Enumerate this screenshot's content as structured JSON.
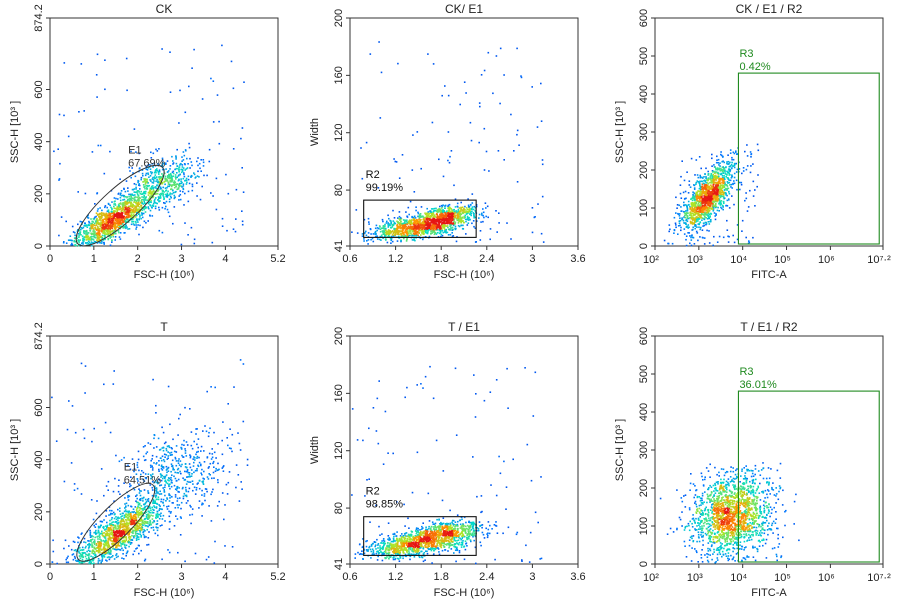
{
  "chart_data": [
    {
      "type": "scatter",
      "title": "CK",
      "xlabel": "FSC-H (10⁶)",
      "ylabel": "SSC-H [10³ ]",
      "xlim": [
        0,
        5.2
      ],
      "ylim": [
        0,
        874.2
      ],
      "xticks": [
        0,
        1,
        2,
        3,
        4,
        5.2
      ],
      "xtick_labels": [
        "0",
        "1",
        "2",
        "3",
        "4",
        "5.2"
      ],
      "yticks": [
        0,
        200,
        400,
        600,
        874.2
      ],
      "ytick_labels": [
        "0",
        "200",
        "400",
        "600",
        "874.2"
      ],
      "cloud": {
        "x": 1.45,
        "y": 105,
        "sx": 0.5,
        "sy": 60,
        "corr": 0.82,
        "n": 1300,
        "tail_x": 2.6,
        "tail_y": 250,
        "tail_sx": 0.4,
        "tail_sy": 50,
        "tail_n": 450
      },
      "gate": {
        "name": "E1",
        "percent": "67.69%",
        "shape": "ellipse",
        "cx": 1.6,
        "cy": 155,
        "rx": 1.3,
        "ry": 35,
        "angle_deg": 42
      }
    },
    {
      "type": "scatter",
      "title": "CK/ E1",
      "xlabel": "FSC-H (10⁶)",
      "ylabel": "Width",
      "xlim": [
        0.6,
        3.6
      ],
      "ylim": [
        41,
        200
      ],
      "xticks": [
        0.6,
        1.2,
        1.8,
        2.4,
        3,
        3.6
      ],
      "xtick_labels": [
        "0.6",
        "1.2",
        "1.8",
        "2.4",
        "3",
        "3.6"
      ],
      "yticks": [
        41,
        80,
        120,
        160,
        200
      ],
      "ytick_labels": [
        "41",
        "80",
        "120",
        "160",
        "200"
      ],
      "cloud": {
        "x": 1.5,
        "y": 55,
        "sx": 0.32,
        "sy": 4.5,
        "corr": 0.5,
        "n": 1100,
        "tail_x": 1.9,
        "tail_y": 64,
        "tail_sx": 0.2,
        "tail_sy": 3,
        "tail_n": 350
      },
      "gate": {
        "name": "R2",
        "percent": "99.19%",
        "shape": "rect",
        "x0": 0.78,
        "x1": 2.26,
        "y0": 47,
        "y1": 73
      }
    },
    {
      "type": "scatter",
      "title": "CK / E1 / R2",
      "xlabel": "FITC-A",
      "ylabel": "SSC-H [10³ ]",
      "x_scale": "log",
      "xlim": [
        100,
        15848932
      ],
      "ylim": [
        0,
        600
      ],
      "xticks": [
        100,
        1000,
        10000,
        100000,
        1000000,
        15848932
      ],
      "xtick_labels": [
        "10²",
        "10³",
        "10⁴",
        "10⁵",
        "10⁶",
        "10⁷·²"
      ],
      "yticks": [
        0,
        100,
        200,
        300,
        400,
        500,
        600
      ],
      "ytick_labels": [
        "0",
        "100",
        "200",
        "300",
        "400",
        "500",
        "600"
      ],
      "cloud": {
        "x": 1500,
        "y": 130,
        "sx": 0.3,
        "sy": 45,
        "corr": 0.7,
        "n": 1300,
        "ymax": 255
      },
      "gate": {
        "name": "R3",
        "percent": "0.42%",
        "shape": "rect",
        "x0": 8000,
        "x1": 13000000,
        "y0": 0,
        "y1": 455
      }
    },
    {
      "type": "scatter",
      "title": "T",
      "xlabel": "FSC-H (10⁶)",
      "ylabel": "SSC-H [10³ ]",
      "xlim": [
        0,
        5.2
      ],
      "ylim": [
        0,
        874.2
      ],
      "xticks": [
        0,
        1,
        2,
        3,
        4,
        5.2
      ],
      "xtick_labels": [
        "0",
        "1",
        "2",
        "3",
        "4",
        "5.2"
      ],
      "yticks": [
        0,
        200,
        400,
        600,
        874.2
      ],
      "ytick_labels": [
        "0",
        "200",
        "400",
        "600",
        "874.2"
      ],
      "cloud": {
        "x": 1.55,
        "y": 120,
        "sx": 0.55,
        "sy": 70,
        "corr": 0.8,
        "n": 1300,
        "tail_x": 2.8,
        "tail_y": 340,
        "tail_sx": 0.6,
        "tail_sy": 90,
        "tail_n": 500
      },
      "gate": {
        "name": "E1",
        "percent": "64.51%",
        "shape": "ellipse",
        "cx": 1.5,
        "cy": 160,
        "rx": 1.2,
        "ry": 32,
        "angle_deg": 45
      }
    },
    {
      "type": "scatter",
      "title": "T / E1",
      "xlabel": "FSC-H (10⁶)",
      "ylabel": "Width",
      "xlim": [
        0.6,
        3.6
      ],
      "ylim": [
        41,
        200
      ],
      "xticks": [
        0.6,
        1.2,
        1.8,
        2.4,
        3,
        3.6
      ],
      "xtick_labels": [
        "0.6",
        "1.2",
        "1.8",
        "2.4",
        "3",
        "3.6"
      ],
      "yticks": [
        41,
        80,
        120,
        160,
        200
      ],
      "ytick_labels": [
        "41",
        "80",
        "120",
        "160",
        "200"
      ],
      "cloud": {
        "x": 1.5,
        "y": 56,
        "sx": 0.33,
        "sy": 5,
        "corr": 0.5,
        "n": 1100,
        "tail_x": 1.9,
        "tail_y": 65,
        "tail_sx": 0.2,
        "tail_sy": 3.5,
        "tail_n": 350
      },
      "gate": {
        "name": "R2",
        "percent": "98.85%",
        "shape": "rect",
        "x0": 0.78,
        "x1": 2.26,
        "y0": 47,
        "y1": 74
      }
    },
    {
      "type": "scatter",
      "title": "T / E1 / R2",
      "xlabel": "FITC-A",
      "ylabel": "SSC-H [10³ ]",
      "x_scale": "log",
      "xlim": [
        100,
        15848932
      ],
      "ylim": [
        0,
        600
      ],
      "xticks": [
        100,
        1000,
        10000,
        100000,
        1000000,
        15848932
      ],
      "xtick_labels": [
        "10²",
        "10³",
        "10⁴",
        "10⁵",
        "10⁶",
        "10⁷·²"
      ],
      "yticks": [
        0,
        100,
        200,
        300,
        400,
        500,
        600
      ],
      "ytick_labels": [
        "0",
        "100",
        "200",
        "300",
        "400",
        "500",
        "600"
      ],
      "cloud": {
        "x": 5000,
        "y": 130,
        "sx": 0.45,
        "sy": 55,
        "corr": 0.15,
        "n": 1600,
        "ymax": 260
      },
      "gate": {
        "name": "R3",
        "percent": "36.01%",
        "shape": "rect",
        "x0": 8000,
        "x1": 13000000,
        "y0": 0,
        "y1": 455
      }
    }
  ]
}
